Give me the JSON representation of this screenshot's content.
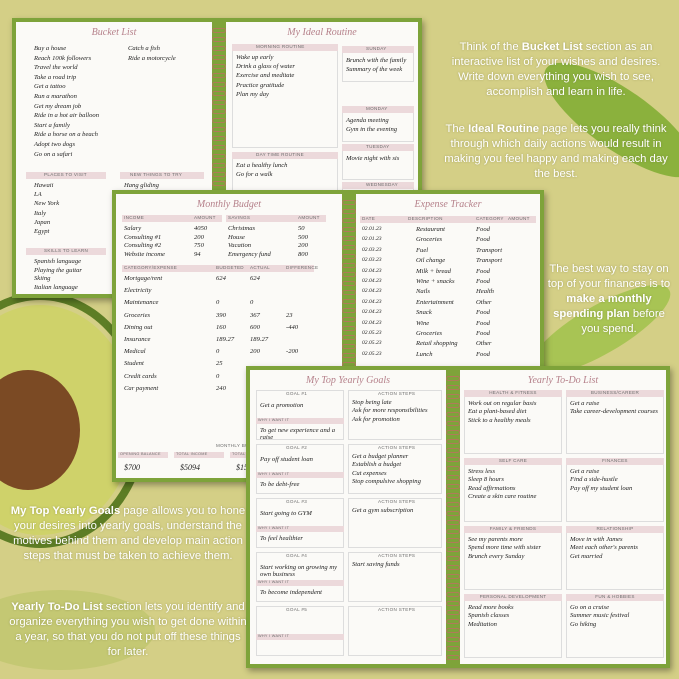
{
  "bucket_list": {
    "title": "Bucket List",
    "items": [
      "Buy a house",
      "Reach 100k followers",
      "Travel the world",
      "Take a road trip",
      "Get a tattoo",
      "Run a marathon",
      "Get my dream job",
      "Ride in a hot air balloon",
      "Start a family",
      "Ride a horse on a beach",
      "Adopt two dogs",
      "Go on a safari"
    ],
    "items_right": [
      "Catch a fish",
      "Ride a motorcycle"
    ],
    "places": {
      "header": "PLACES TO VISIT",
      "items": [
        "Hawaii",
        "LA",
        "New York",
        "Italy",
        "Japan",
        "Egypt"
      ]
    },
    "new_things": {
      "header": "NEW THINGS TO TRY",
      "items": [
        "Hang gliding",
        "Stargazing",
        "Skiing",
        "Baking classes"
      ]
    },
    "skills": {
      "header": "SKILLS TO LEARN",
      "items": [
        "Spanish language",
        "Playing the guitar",
        "Skiing",
        "Italian language"
      ]
    }
  },
  "ideal_routine": {
    "title": "My Ideal Routine",
    "morning": {
      "header": "MORNING ROUTINE",
      "items": [
        "Wake up early",
        "Drink a glass of water",
        "Exercise and meditate",
        "Practice gratitude",
        "Plan my day"
      ]
    },
    "daytime": {
      "header": "DAY TIME ROUTINE",
      "items": [
        "Eat a healthy lunch",
        "Go for a walk"
      ]
    },
    "days": [
      {
        "header": "SUNDAY",
        "items": [
          "Brunch with the family",
          "Summary of the week"
        ]
      },
      {
        "header": "MONDAY",
        "items": [
          "Agenda meeting",
          "Gym in the evening"
        ]
      },
      {
        "header": "TUESDAY",
        "items": [
          "Movie night with sis"
        ]
      },
      {
        "header": "WEDNESDAY",
        "items": [
          "Gym in the evening"
        ]
      }
    ]
  },
  "monthly_budget": {
    "title": "Monthly Budget",
    "income": {
      "headers": [
        "INCOME",
        "AMOUNT"
      ],
      "rows": [
        [
          "Salary",
          "4050"
        ],
        [
          "Consulting #1",
          "200"
        ],
        [
          "Consulting #2",
          "750"
        ],
        [
          "Website income",
          "94"
        ]
      ]
    },
    "savings": {
      "headers": [
        "SAVINGS",
        "AMOUNT"
      ],
      "rows": [
        [
          "Christmas",
          "50"
        ],
        [
          "House",
          "500"
        ],
        [
          "Vacation",
          "200"
        ],
        [
          "Emergency fund",
          "800"
        ]
      ]
    },
    "expenses": {
      "headers": [
        "CATEGORY/EXPENSE",
        "BUDGETED",
        "ACTUAL",
        "DIFFERENCE"
      ],
      "rows": [
        [
          "Mortgage/rent",
          "624",
          "624"
        ],
        [
          "Electricity"
        ],
        [
          "Maintenance",
          "0",
          "0"
        ],
        [
          "Groceries",
          "390",
          "367",
          "23"
        ],
        [
          "Dining out",
          "160",
          "600",
          "-440"
        ],
        [
          "Insurance",
          "189.27",
          "189.27"
        ],
        [
          "Medical",
          "0",
          "200",
          "-200"
        ],
        [
          "Student",
          "25"
        ],
        [
          "Credit cards",
          "0"
        ],
        [
          "Car payment",
          "240"
        ]
      ]
    },
    "summary": {
      "title": "MONTHLY BUDGET RE",
      "labels": [
        "OPENING BALANCE",
        "TOTAL INCOME",
        "TOTAL EXPENSES",
        "TOTAL"
      ],
      "values": [
        "$700",
        "$5094",
        "$1513",
        "$1512"
      ]
    }
  },
  "expense_tracker": {
    "title": "Expense Tracker",
    "headers": [
      "DATE",
      "DESCRIPTION",
      "CATEGORY",
      "AMOUNT"
    ],
    "rows": [
      [
        "02.01.23",
        "Restaurant",
        "Food"
      ],
      [
        "02.01.23",
        "Groceries",
        "Food"
      ],
      [
        "02.03.23",
        "Fuel",
        "Transport"
      ],
      [
        "02.03.23",
        "Oil change",
        "Transport"
      ],
      [
        "02.04.23",
        "Milk + bread",
        "Food"
      ],
      [
        "02.04.23",
        "Wine + snacks",
        "Food"
      ],
      [
        "02.04.23",
        "Nails",
        "Health"
      ],
      [
        "02.04.23",
        "Entertainment",
        "Other"
      ],
      [
        "02.04.23",
        "Snack",
        "Food"
      ],
      [
        "02.04.23",
        "Wine",
        "Food"
      ],
      [
        "02.05.23",
        "Groceries",
        "Food"
      ],
      [
        "02.05.23",
        "Retail shopping",
        "Other"
      ],
      [
        "02.05.23",
        "Lunch",
        "Food"
      ]
    ]
  },
  "yearly_goals": {
    "title": "My Top Yearly Goals",
    "why_label": "WHY I WANT IT",
    "steps_label": "ACTION STEPS",
    "goals": [
      {
        "label": "GOAL #1",
        "goal": "Get a promotion",
        "why": "To get new experience and a raise",
        "steps": [
          "Stop being late",
          "Ask for more responsibilities",
          "Ask for promotion"
        ]
      },
      {
        "label": "GOAL #2",
        "goal": "Pay off student loan",
        "why": "To be debt-free",
        "steps": [
          "Get a budget planner",
          "Establish a budget",
          "Cut expenses",
          "Stop compulsive shopping"
        ]
      },
      {
        "label": "GOAL #3",
        "goal": "Start going to GYM",
        "why": "To feel healthier",
        "steps": [
          "Get a gym subscription"
        ]
      },
      {
        "label": "GOAL #4",
        "goal": "Start working on growing my own business",
        "why": "To become independent",
        "steps": [
          "Start saving funds"
        ]
      },
      {
        "label": "GOAL #5"
      }
    ]
  },
  "yearly_todo": {
    "title": "Yearly To-Do List",
    "sections": [
      {
        "header": "HEALTH & FITNESS",
        "items": [
          "Work out on regular basis",
          "Eat a plant-based diet",
          "Stick to a healthy meals"
        ]
      },
      {
        "header": "BUSINESS/CAREER",
        "items": [
          "Get a raise",
          "Take career-development courses"
        ]
      },
      {
        "header": "SELF CARE",
        "items": [
          "Stress less",
          "Sleep 8 hours",
          "Read affirmations",
          "Create a skin care routine"
        ]
      },
      {
        "header": "FINANCES",
        "items": [
          "Get a raise",
          "Find a side-hustle",
          "Pay off my student loan"
        ]
      },
      {
        "header": "FAMILY & FRIENDS",
        "items": [
          "See my parents more",
          "Spend more time with sister",
          "Brunch every Sunday"
        ]
      },
      {
        "header": "RELATIONSHIP",
        "items": [
          "Move in with James",
          "Meet each other's parents",
          "Get married"
        ]
      },
      {
        "header": "PERSONAL DEVELOPMENT",
        "items": [
          "Read more books",
          "Spanish classes",
          "Meditation"
        ]
      },
      {
        "header": "FUN & HOBBIES",
        "items": [
          "Go on a cruise",
          "Summer music festival",
          "Go hiking"
        ]
      }
    ]
  },
  "descriptions": [
    {
      "parts": [
        {
          "text": "Think of the "
        },
        {
          "text": "Bucket List",
          "bold": true
        },
        {
          "text": " section as an interactive list of your wishes and desires. Write down everything you wish to see, accomplish and learn in life."
        }
      ]
    },
    {
      "parts": [
        {
          "text": "The "
        },
        {
          "text": "Ideal Routine",
          "bold": true
        },
        {
          "text": " page lets you really think through which daily actions would result in making you feel happy and making each day the best."
        }
      ]
    },
    {
      "parts": [
        {
          "text": "The best way to stay on top of your finances is to "
        },
        {
          "text": "make a monthly spending plan",
          "bold": true
        },
        {
          "text": " before you spend."
        }
      ]
    },
    {
      "parts": [
        {
          "text": "My Top Yearly Goals",
          "bold": true
        },
        {
          "text": " page allows you to hone your desires into yearly goals, understand the motives behind them and develop main action steps that must be taken to achieve them."
        }
      ]
    },
    {
      "parts": [
        {
          "text": "Yearly To-Do List",
          "bold": true
        },
        {
          "text": " section lets you identify and organize everything you wish to get done within a year, so that you do not put off these things for later."
        }
      ]
    }
  ]
}
